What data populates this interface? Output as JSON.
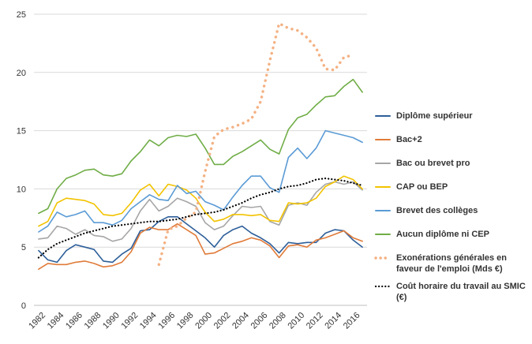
{
  "chart_data": {
    "type": "line",
    "title": "",
    "xlabel": "",
    "ylabel": "",
    "ylim": [
      0,
      25
    ],
    "yticks": [
      0,
      5,
      10,
      15,
      20,
      25
    ],
    "xlim": [
      1982,
      2017
    ],
    "xticks": [
      1982,
      1984,
      1986,
      1988,
      1990,
      1992,
      1994,
      1996,
      1998,
      2000,
      2002,
      2004,
      2006,
      2008,
      2010,
      2012,
      2014,
      2016
    ],
    "x_tick_labels": [
      "1982",
      "1984",
      "1986",
      "1988",
      "1990",
      "1992",
      "1994",
      "1996",
      "1998",
      "2000",
      "2002",
      "2004",
      "2006",
      "2008",
      "2010",
      "2012",
      "2014",
      "2016"
    ],
    "y_tick_labels": [
      "0",
      "5",
      "10",
      "15",
      "20",
      "25"
    ],
    "grid": true,
    "legend_position": "right",
    "x": [
      1982,
      1983,
      1984,
      1985,
      1986,
      1987,
      1988,
      1989,
      1990,
      1991,
      1992,
      1993,
      1994,
      1995,
      1996,
      1997,
      1998,
      1999,
      2000,
      2001,
      2002,
      2003,
      2004,
      2005,
      2006,
      2007,
      2008,
      2009,
      2010,
      2011,
      2012,
      2013,
      2014,
      2015,
      2016,
      2017
    ],
    "series": [
      {
        "name": "Diplôme supérieur",
        "color": "#2e5f9a",
        "style": "solid",
        "values": [
          4.7,
          3.9,
          3.7,
          4.7,
          5.2,
          5.0,
          4.8,
          3.8,
          3.7,
          4.4,
          4.9,
          6.4,
          6.5,
          7.2,
          7.6,
          7.6,
          7.0,
          6.4,
          5.8,
          5.0,
          6.0,
          6.5,
          6.8,
          6.2,
          5.8,
          5.3,
          4.5,
          5.4,
          5.3,
          5.4,
          5.4,
          6.2,
          6.5,
          6.4,
          5.6,
          5.0
        ]
      },
      {
        "name": "Bac+2",
        "color": "#e07b39",
        "style": "solid",
        "values": [
          3.1,
          3.6,
          3.5,
          3.5,
          3.7,
          3.8,
          3.6,
          3.3,
          3.4,
          3.7,
          4.6,
          6.2,
          6.7,
          6.5,
          6.5,
          7.0,
          6.5,
          6.0,
          4.4,
          4.5,
          4.9,
          5.3,
          5.5,
          5.8,
          5.6,
          5.1,
          4.1,
          5.1,
          5.2,
          5.0,
          5.6,
          5.8,
          6.1,
          6.4,
          5.8,
          5.5
        ]
      },
      {
        "name": "Bac ou brevet pro",
        "color": "#a6a6a6",
        "style": "solid",
        "values": [
          5.7,
          5.8,
          6.8,
          6.6,
          6.1,
          6.5,
          6.0,
          5.9,
          5.5,
          5.7,
          6.6,
          8.1,
          9.1,
          8.1,
          8.5,
          9.2,
          8.9,
          8.5,
          7.1,
          6.5,
          6.8,
          7.7,
          8.5,
          8.4,
          8.5,
          7.2,
          6.9,
          8.6,
          8.8,
          8.6,
          9.7,
          10.4,
          10.6,
          10.4,
          10.6,
          9.9
        ]
      },
      {
        "name": "CAP ou BEP",
        "color": "#f2c300",
        "style": "solid",
        "values": [
          6.8,
          7.2,
          8.8,
          9.2,
          9.1,
          9.0,
          8.7,
          7.8,
          7.7,
          7.9,
          8.8,
          9.9,
          10.4,
          9.4,
          10.4,
          10.2,
          9.9,
          9.2,
          8.0,
          7.2,
          7.4,
          7.8,
          7.8,
          7.7,
          7.8,
          7.3,
          7.2,
          8.8,
          8.7,
          8.8,
          9.2,
          10.2,
          10.6,
          11.1,
          10.8,
          10.0
        ]
      },
      {
        "name": "Brevet des collèges",
        "color": "#5b9bd5",
        "style": "solid",
        "values": [
          6.3,
          6.8,
          8.0,
          7.6,
          7.8,
          8.1,
          7.1,
          7.1,
          6.9,
          7.3,
          8.3,
          8.9,
          9.5,
          9.1,
          9.0,
          10.3,
          9.6,
          9.8,
          8.9,
          8.6,
          8.2,
          9.3,
          10.3,
          11.1,
          11.1,
          10.1,
          9.7,
          12.7,
          13.5,
          12.6,
          13.5,
          15.0,
          14.8,
          14.6,
          14.4,
          14.0
        ]
      },
      {
        "name": "Aucun diplôme ni CEP",
        "color": "#70ad47",
        "style": "solid",
        "values": [
          7.9,
          8.3,
          10.0,
          10.9,
          11.2,
          11.6,
          11.7,
          11.2,
          11.1,
          11.3,
          12.4,
          13.2,
          14.2,
          13.7,
          14.4,
          14.6,
          14.5,
          14.7,
          13.5,
          12.1,
          12.1,
          12.8,
          13.2,
          13.7,
          14.2,
          13.4,
          13.0,
          15.1,
          16.1,
          16.4,
          17.2,
          17.9,
          18.0,
          18.8,
          19.4,
          18.3
        ]
      },
      {
        "name": "Exonérations générales en faveur de l'emploi (Mds €)",
        "color": "#f4b183",
        "style": "dotted",
        "x": [
          1995,
          1996,
          1997,
          1998,
          1999,
          2000,
          2001,
          2002,
          2003,
          2004,
          2005,
          2006,
          2007,
          2008,
          2009,
          2010,
          2011,
          2012,
          2013,
          2014,
          2015,
          2016
        ],
        "values": [
          3.5,
          6.5,
          6.8,
          7.5,
          8.0,
          11.5,
          14.5,
          15.1,
          15.3,
          15.6,
          16.0,
          17.5,
          21.0,
          24.2,
          23.8,
          23.6,
          23.0,
          22.1,
          20.3,
          20.2,
          21.3,
          21.5
        ]
      },
      {
        "name": "Coût horaire du travail au SMIC (€)",
        "color": "#000000",
        "style": "dotted",
        "values": [
          4.1,
          4.8,
          5.3,
          5.6,
          5.9,
          6.2,
          6.4,
          6.6,
          6.8,
          6.9,
          7.0,
          7.1,
          7.2,
          7.2,
          7.3,
          7.4,
          7.6,
          7.8,
          7.9,
          8.0,
          8.2,
          8.5,
          8.8,
          9.2,
          9.5,
          9.7,
          10.0,
          10.2,
          10.3,
          10.5,
          10.8,
          10.9,
          10.8,
          10.7,
          10.5,
          10.3
        ]
      }
    ]
  }
}
